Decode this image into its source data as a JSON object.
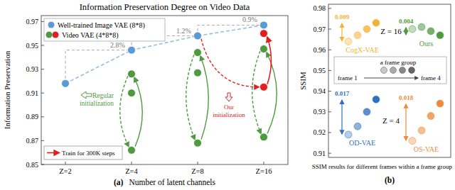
{
  "chart_data": [
    {
      "type": "scatter",
      "title": "Information Preservation Degree on Video Data",
      "panel": "(a)",
      "x_label": "Number of latent channels",
      "y_label": "Information Preservation",
      "categories": [
        "Z=2",
        "Z=4",
        "Z=8",
        "Z=16"
      ],
      "series": [
        {
          "name": "Well-trained Image VAE (8*8)",
          "color": "#5b9bd5",
          "values": [
            0.918,
            0.946,
            0.958,
            0.967
          ],
          "line_style": "dashed"
        },
        {
          "name": "Video VAE (4*8*8)",
          "color": "#4f9a41",
          "values": [
            null,
            0.926,
            0.944,
            0.947
          ]
        },
        {
          "color": "#4f9a41",
          "values": [
            null,
            0.91,
            0.927,
            null
          ]
        },
        {
          "color": "#4f9a41",
          "values": [
            null,
            0.862,
            0.868,
            0.873
          ]
        },
        {
          "color": "#e02020",
          "values": [
            null,
            null,
            null,
            0.915
          ]
        },
        {
          "color": "#e02020",
          "values": [
            null,
            null,
            null,
            0.96
          ]
        }
      ],
      "ylim": [
        0.85,
        0.975
      ],
      "yticks": [
        0.85,
        0.87,
        0.89,
        0.91,
        0.93,
        0.95,
        0.97
      ],
      "annotations": [
        "2.8%",
        "1.2%",
        "0.9%",
        "Regular initialization",
        "Our initialization",
        "Train for 300K steps"
      ],
      "legend": "upper left"
    },
    {
      "type": "dot",
      "panel": "(b)",
      "x_label": "SSIM results for different frames within a frame group",
      "y_label": "SSIM",
      "tick_labels": "y",
      "ylim": [
        0.908,
        0.982
      ],
      "yticks": [
        0.91,
        0.92,
        0.93,
        0.94,
        0.95,
        0.96,
        0.97,
        0.98
      ],
      "groups": [
        {
          "label": "Z = 16",
          "series": [
            {
              "name": "CogX-VAE",
              "color": "#f2b233",
              "values": [
                0.964,
                0.967,
                0.97,
                0.973
              ],
              "difference": 0.009
            },
            {
              "name": "Ours",
              "color": "#4f9a41",
              "values": [
                0.97,
                0.971,
                0.969,
                0.967
              ],
              "difference": 0.004
            }
          ]
        },
        {
          "label": "Z = 4",
          "series": [
            {
              "name": "OD-VAE",
              "color": "#2f6fbf",
              "values": [
                0.919,
                0.923,
                0.93,
                0.936
              ],
              "difference": 0.017
            },
            {
              "name": "OS-VAE",
              "color": "#ed8a3c",
              "values": [
                0.916,
                0.921,
                0.928,
                0.934
              ],
              "difference": 0.018
            }
          ]
        }
      ],
      "inset": {
        "title": "a frame group",
        "start": "frame 1",
        "end": "frame 4"
      }
    }
  ]
}
